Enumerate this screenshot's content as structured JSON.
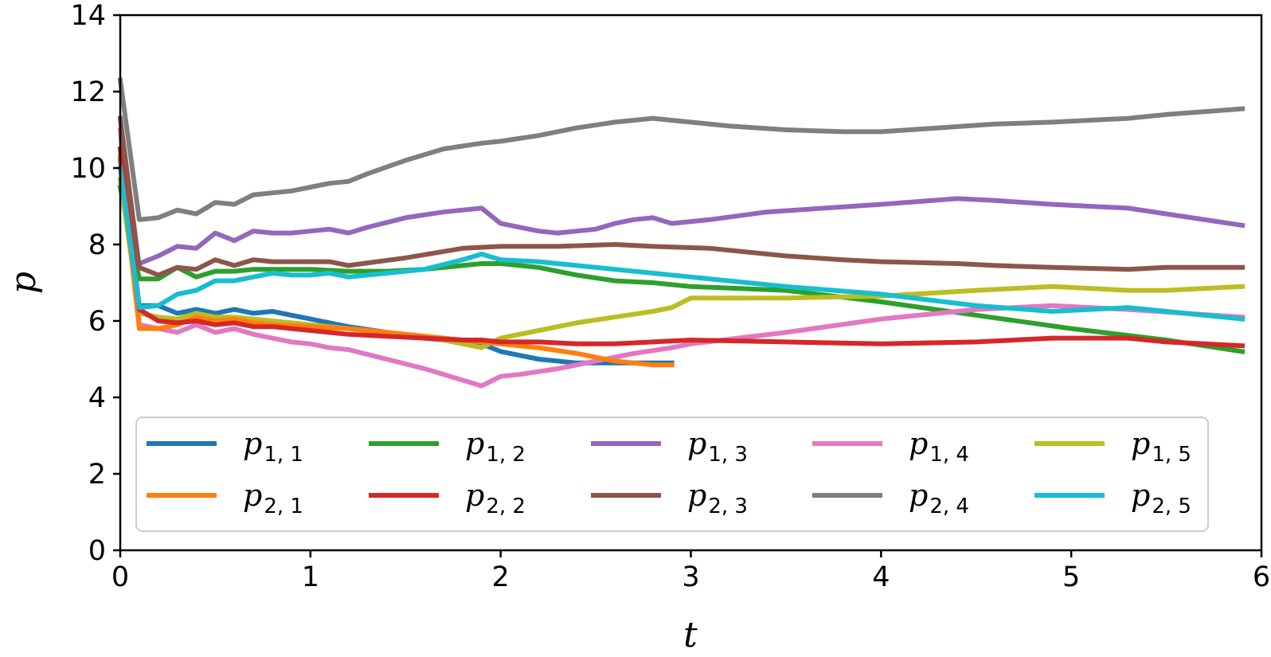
{
  "chart_data": {
    "type": "line",
    "title": "",
    "xlabel": "t",
    "ylabel": "p",
    "xlim": [
      0,
      6
    ],
    "ylim": [
      0,
      14
    ],
    "xticks": [
      "0",
      "1",
      "2",
      "3",
      "4",
      "5",
      "6"
    ],
    "yticks": [
      "0",
      "2",
      "4",
      "6",
      "8",
      "10",
      "12",
      "14"
    ],
    "grid": false,
    "legend_position": "lower-center",
    "series": [
      {
        "name": "p1,1",
        "base": "p",
        "sub": "1, 1",
        "color": "#1f77b4",
        "x": [
          0,
          0.1,
          0.2,
          0.3,
          0.4,
          0.5,
          0.6,
          0.7,
          0.8,
          0.9,
          1.0,
          1.2,
          1.4,
          1.6,
          1.8,
          1.9,
          2.0,
          2.2,
          2.4,
          2.6,
          2.8,
          2.9
        ],
        "y": [
          10.2,
          6.4,
          6.4,
          6.2,
          6.3,
          6.2,
          6.3,
          6.2,
          6.25,
          6.15,
          6.05,
          5.85,
          5.7,
          5.55,
          5.45,
          5.4,
          5.2,
          5.0,
          4.9,
          4.9,
          4.9,
          4.9
        ]
      },
      {
        "name": "p1,2",
        "base": "p",
        "sub": "1, 2",
        "color": "#2ca02c",
        "x": [
          0,
          0.1,
          0.2,
          0.3,
          0.4,
          0.5,
          0.6,
          0.7,
          0.8,
          1.0,
          1.2,
          1.4,
          1.6,
          1.8,
          1.9,
          2.0,
          2.2,
          2.4,
          2.6,
          2.8,
          3.0,
          3.5,
          4.0,
          4.5,
          5.0,
          5.5,
          5.9
        ],
        "y": [
          9.5,
          7.1,
          7.1,
          7.4,
          7.15,
          7.3,
          7.3,
          7.35,
          7.35,
          7.35,
          7.3,
          7.3,
          7.35,
          7.45,
          7.5,
          7.5,
          7.4,
          7.2,
          7.05,
          7.0,
          6.9,
          6.8,
          6.5,
          6.15,
          5.8,
          5.5,
          5.2
        ]
      },
      {
        "name": "p1,3",
        "base": "p",
        "sub": "1, 3",
        "color": "#9467bd",
        "x": [
          0.1,
          0.2,
          0.3,
          0.4,
          0.5,
          0.6,
          0.7,
          0.8,
          0.9,
          1.0,
          1.1,
          1.2,
          1.3,
          1.5,
          1.7,
          1.9,
          2.0,
          2.1,
          2.2,
          2.3,
          2.4,
          2.5,
          2.6,
          2.7,
          2.8,
          2.9,
          3.1,
          3.4,
          3.7,
          4.0,
          4.4,
          4.6,
          4.9,
          5.3,
          5.5,
          5.9
        ],
        "y": [
          7.5,
          7.7,
          7.95,
          7.9,
          8.3,
          8.1,
          8.35,
          8.3,
          8.3,
          8.35,
          8.4,
          8.3,
          8.45,
          8.7,
          8.85,
          8.95,
          8.55,
          8.45,
          8.35,
          8.3,
          8.35,
          8.4,
          8.55,
          8.65,
          8.7,
          8.55,
          8.65,
          8.85,
          8.95,
          9.05,
          9.2,
          9.15,
          9.05,
          8.95,
          8.8,
          8.5
        ]
      },
      {
        "name": "p1,4",
        "base": "p",
        "sub": "1, 4",
        "color": "#e377c2",
        "x": [
          0,
          0.1,
          0.2,
          0.3,
          0.4,
          0.5,
          0.6,
          0.7,
          0.8,
          0.9,
          1.0,
          1.1,
          1.2,
          1.4,
          1.6,
          1.8,
          1.9,
          2.0,
          2.1,
          2.3,
          2.5,
          2.7,
          2.9,
          3.0,
          3.5,
          4.0,
          4.5,
          4.9,
          5.3,
          5.9
        ],
        "y": [
          11.0,
          5.9,
          5.8,
          5.7,
          5.9,
          5.7,
          5.8,
          5.65,
          5.55,
          5.45,
          5.4,
          5.3,
          5.25,
          5.0,
          4.75,
          4.45,
          4.3,
          4.55,
          4.6,
          4.75,
          4.95,
          5.15,
          5.3,
          5.4,
          5.7,
          6.05,
          6.3,
          6.4,
          6.3,
          6.1
        ]
      },
      {
        "name": "p1,5",
        "base": "p",
        "sub": "1, 5",
        "color": "#bcbd22",
        "x": [
          0,
          0.1,
          0.2,
          0.3,
          0.4,
          0.5,
          0.6,
          0.7,
          0.8,
          0.9,
          1.0,
          1.2,
          1.5,
          1.7,
          1.9,
          2.0,
          2.2,
          2.4,
          2.6,
          2.8,
          2.9,
          3.0,
          3.5,
          4.0,
          4.5,
          4.9,
          5.3,
          5.5,
          5.9
        ],
        "y": [
          9.7,
          6.2,
          6.1,
          6.05,
          6.2,
          6.1,
          6.1,
          6.05,
          6.0,
          5.95,
          5.9,
          5.8,
          5.65,
          5.5,
          5.3,
          5.55,
          5.75,
          5.95,
          6.1,
          6.25,
          6.35,
          6.6,
          6.6,
          6.65,
          6.8,
          6.9,
          6.8,
          6.8,
          6.9
        ]
      },
      {
        "name": "p2,1",
        "base": "p",
        "sub": "2, 1",
        "color": "#ff7f0e",
        "x": [
          0,
          0.1,
          0.2,
          0.3,
          0.4,
          0.5,
          0.6,
          0.7,
          0.8,
          1.0,
          1.2,
          1.4,
          1.6,
          1.8,
          2.0,
          2.2,
          2.4,
          2.6,
          2.8,
          2.9
        ],
        "y": [
          10.3,
          5.8,
          5.8,
          5.9,
          6.1,
          6.0,
          6.05,
          5.95,
          5.9,
          5.85,
          5.8,
          5.7,
          5.6,
          5.5,
          5.4,
          5.3,
          5.15,
          4.95,
          4.85,
          4.85
        ]
      },
      {
        "name": "p2,2",
        "base": "p",
        "sub": "2, 2",
        "color": "#d62728",
        "x": [
          0,
          0.1,
          0.2,
          0.3,
          0.4,
          0.5,
          0.6,
          0.7,
          0.8,
          1.0,
          1.2,
          1.4,
          1.6,
          1.8,
          1.9,
          2.0,
          2.2,
          2.4,
          2.6,
          2.8,
          3.0,
          3.5,
          4.0,
          4.5,
          4.9,
          5.3,
          5.5,
          5.9
        ],
        "y": [
          10.5,
          6.3,
          6.0,
          5.95,
          6.0,
          5.9,
          5.95,
          5.85,
          5.85,
          5.75,
          5.65,
          5.6,
          5.55,
          5.5,
          5.5,
          5.45,
          5.45,
          5.4,
          5.4,
          5.45,
          5.5,
          5.45,
          5.4,
          5.45,
          5.55,
          5.55,
          5.45,
          5.35
        ]
      },
      {
        "name": "p2,3",
        "base": "p",
        "sub": "2, 3",
        "color": "#8c564b",
        "x": [
          0,
          0.1,
          0.2,
          0.3,
          0.4,
          0.5,
          0.6,
          0.7,
          0.8,
          1.0,
          1.1,
          1.2,
          1.5,
          1.8,
          2.0,
          2.3,
          2.6,
          2.8,
          3.1,
          3.5,
          3.8,
          4.0,
          4.4,
          4.6,
          4.9,
          5.3,
          5.5,
          5.9
        ],
        "y": [
          11.3,
          7.4,
          7.2,
          7.4,
          7.35,
          7.6,
          7.45,
          7.6,
          7.55,
          7.55,
          7.55,
          7.45,
          7.65,
          7.9,
          7.95,
          7.95,
          8.0,
          7.95,
          7.9,
          7.7,
          7.6,
          7.55,
          7.5,
          7.45,
          7.4,
          7.35,
          7.4,
          7.4
        ]
      },
      {
        "name": "p2,4",
        "base": "p",
        "sub": "2, 4",
        "color": "#7f7f7f",
        "x": [
          0,
          0.1,
          0.2,
          0.3,
          0.4,
          0.5,
          0.6,
          0.7,
          0.8,
          0.9,
          1.0,
          1.1,
          1.2,
          1.3,
          1.5,
          1.7,
          1.9,
          2.0,
          2.2,
          2.4,
          2.6,
          2.8,
          3.0,
          3.2,
          3.5,
          3.8,
          4.0,
          4.3,
          4.6,
          4.9,
          5.3,
          5.5,
          5.9
        ],
        "y": [
          12.3,
          8.65,
          8.7,
          8.9,
          8.8,
          9.1,
          9.05,
          9.3,
          9.35,
          9.4,
          9.5,
          9.6,
          9.65,
          9.85,
          10.2,
          10.5,
          10.65,
          10.7,
          10.85,
          11.05,
          11.2,
          11.3,
          11.2,
          11.1,
          11.0,
          10.95,
          10.95,
          11.05,
          11.15,
          11.2,
          11.3,
          11.4,
          11.55
        ]
      },
      {
        "name": "p2,5",
        "base": "p",
        "sub": "2, 5",
        "color": "#17becf",
        "x": [
          0,
          0.1,
          0.2,
          0.3,
          0.4,
          0.5,
          0.6,
          0.7,
          0.8,
          0.9,
          1.0,
          1.1,
          1.2,
          1.4,
          1.6,
          1.8,
          1.9,
          2.0,
          2.2,
          2.4,
          2.6,
          2.8,
          3.0,
          3.5,
          4.0,
          4.5,
          4.9,
          5.3,
          5.5,
          5.9
        ],
        "y": [
          10.0,
          6.35,
          6.4,
          6.7,
          6.8,
          7.05,
          7.05,
          7.15,
          7.25,
          7.2,
          7.2,
          7.25,
          7.15,
          7.25,
          7.35,
          7.6,
          7.75,
          7.6,
          7.55,
          7.45,
          7.35,
          7.25,
          7.15,
          6.9,
          6.7,
          6.4,
          6.25,
          6.35,
          6.25,
          6.05
        ]
      }
    ]
  }
}
